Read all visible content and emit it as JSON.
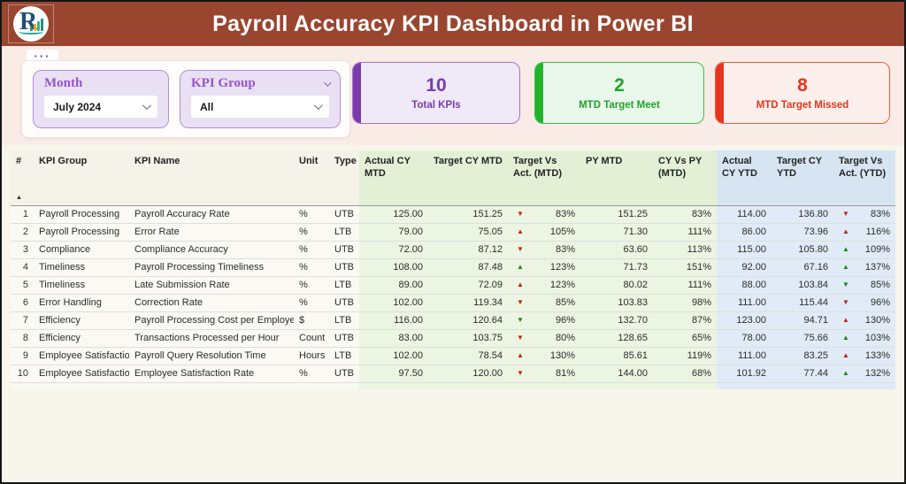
{
  "header": {
    "title": "Payroll Accuracy KPI Dashboard in Power BI",
    "logo_letter": "R",
    "header_bg": "#99452F"
  },
  "filters": {
    "more_options": "···",
    "month": {
      "label": "Month",
      "value": "July 2024"
    },
    "kpi_group": {
      "label": "KPI Group",
      "value": "All"
    }
  },
  "cards": [
    {
      "value": "10",
      "label": "Total KPIs",
      "bg": "#EFE9F8",
      "border": "#A66FD0",
      "accent": "#7B3AAC",
      "text": "#7B3AAC"
    },
    {
      "value": "2",
      "label": "MTD Target Meet",
      "bg": "#E9F8EB",
      "border": "#3DBD45",
      "accent": "#23B22B",
      "text": "#1FA32A"
    },
    {
      "value": "8",
      "label": "MTD Target Missed",
      "bg": "#FDF0EC",
      "border": "#E85C3A",
      "accent": "#E8341C",
      "text": "#E8341C"
    }
  ],
  "table": {
    "columns": [
      "#",
      "KPI Group",
      "KPI Name",
      "Unit",
      "Type",
      "Actual CY MTD",
      "Target CY MTD",
      "Target Vs Act. (MTD)",
      "PY MTD",
      "CY Vs PY (MTD)",
      "Actual CY YTD",
      "Target CY YTD",
      "Target Vs Act. (YTD)"
    ],
    "sort_indicator": "▲",
    "arrow_colors": {
      "red": "#C41E12",
      "green": "#138713"
    },
    "rows": [
      {
        "num": "1",
        "group": "Payroll Processing",
        "name": "Payroll Accuracy Rate",
        "unit": "%",
        "type": "UTB",
        "actual_cy_mtd": "125.00",
        "target_cy_mtd": "151.25",
        "tva_mtd": {
          "dir": "down",
          "color": "red",
          "value": "83%"
        },
        "py_mtd": "151.25",
        "cy_vs_py_mtd": "83%",
        "actual_cy_ytd": "114.00",
        "target_cy_ytd": "136.80",
        "tva_ytd": {
          "dir": "down",
          "color": "red",
          "value": "83%"
        }
      },
      {
        "num": "2",
        "group": "Payroll Processing",
        "name": "Error Rate",
        "unit": "%",
        "type": "LTB",
        "actual_cy_mtd": "79.00",
        "target_cy_mtd": "75.05",
        "tva_mtd": {
          "dir": "up",
          "color": "red",
          "value": "105%"
        },
        "py_mtd": "71.30",
        "cy_vs_py_mtd": "111%",
        "actual_cy_ytd": "86.00",
        "target_cy_ytd": "73.96",
        "tva_ytd": {
          "dir": "up",
          "color": "red",
          "value": "116%"
        }
      },
      {
        "num": "3",
        "group": "Compliance",
        "name": "Compliance Accuracy",
        "unit": "%",
        "type": "UTB",
        "actual_cy_mtd": "72.00",
        "target_cy_mtd": "87.12",
        "tva_mtd": {
          "dir": "down",
          "color": "red",
          "value": "83%"
        },
        "py_mtd": "63.60",
        "cy_vs_py_mtd": "113%",
        "actual_cy_ytd": "115.00",
        "target_cy_ytd": "105.80",
        "tva_ytd": {
          "dir": "up",
          "color": "green",
          "value": "109%"
        }
      },
      {
        "num": "4",
        "group": "Timeliness",
        "name": "Payroll Processing Timeliness",
        "unit": "%",
        "type": "UTB",
        "actual_cy_mtd": "108.00",
        "target_cy_mtd": "87.48",
        "tva_mtd": {
          "dir": "up",
          "color": "green",
          "value": "123%"
        },
        "py_mtd": "71.73",
        "cy_vs_py_mtd": "151%",
        "actual_cy_ytd": "92.00",
        "target_cy_ytd": "67.16",
        "tva_ytd": {
          "dir": "up",
          "color": "green",
          "value": "137%"
        }
      },
      {
        "num": "5",
        "group": "Timeliness",
        "name": "Late Submission Rate",
        "unit": "%",
        "type": "LTB",
        "actual_cy_mtd": "89.00",
        "target_cy_mtd": "72.09",
        "tva_mtd": {
          "dir": "up",
          "color": "red",
          "value": "123%"
        },
        "py_mtd": "80.02",
        "cy_vs_py_mtd": "111%",
        "actual_cy_ytd": "88.00",
        "target_cy_ytd": "103.84",
        "tva_ytd": {
          "dir": "down",
          "color": "green",
          "value": "85%"
        }
      },
      {
        "num": "6",
        "group": "Error Handling",
        "name": "Correction Rate",
        "unit": "%",
        "type": "UTB",
        "actual_cy_mtd": "102.00",
        "target_cy_mtd": "119.34",
        "tva_mtd": {
          "dir": "down",
          "color": "red",
          "value": "85%"
        },
        "py_mtd": "103.83",
        "cy_vs_py_mtd": "98%",
        "actual_cy_ytd": "111.00",
        "target_cy_ytd": "115.44",
        "tva_ytd": {
          "dir": "down",
          "color": "red",
          "value": "96%"
        }
      },
      {
        "num": "7",
        "group": "Efficiency",
        "name": "Payroll Processing Cost per Employee",
        "unit": "$",
        "type": "LTB",
        "actual_cy_mtd": "116.00",
        "target_cy_mtd": "120.64",
        "tva_mtd": {
          "dir": "down",
          "color": "green",
          "value": "96%"
        },
        "py_mtd": "132.70",
        "cy_vs_py_mtd": "87%",
        "actual_cy_ytd": "123.00",
        "target_cy_ytd": "94.71",
        "tva_ytd": {
          "dir": "up",
          "color": "red",
          "value": "130%"
        }
      },
      {
        "num": "8",
        "group": "Efficiency",
        "name": "Transactions Processed per Hour",
        "unit": "Count",
        "type": "UTB",
        "actual_cy_mtd": "83.00",
        "target_cy_mtd": "103.75",
        "tva_mtd": {
          "dir": "down",
          "color": "red",
          "value": "80%"
        },
        "py_mtd": "128.65",
        "cy_vs_py_mtd": "65%",
        "actual_cy_ytd": "78.00",
        "target_cy_ytd": "75.66",
        "tva_ytd": {
          "dir": "up",
          "color": "green",
          "value": "103%"
        }
      },
      {
        "num": "9",
        "group": "Employee Satisfaction",
        "name": "Payroll Query Resolution Time",
        "unit": "Hours",
        "type": "LTB",
        "actual_cy_mtd": "102.00",
        "target_cy_mtd": "78.54",
        "tva_mtd": {
          "dir": "up",
          "color": "red",
          "value": "130%"
        },
        "py_mtd": "85.61",
        "cy_vs_py_mtd": "119%",
        "actual_cy_ytd": "111.00",
        "target_cy_ytd": "83.25",
        "tva_ytd": {
          "dir": "up",
          "color": "red",
          "value": "133%"
        }
      },
      {
        "num": "10",
        "group": "Employee Satisfaction",
        "name": "Employee Satisfaction Rate",
        "unit": "%",
        "type": "UTB",
        "actual_cy_mtd": "97.50",
        "target_cy_mtd": "120.00",
        "tva_mtd": {
          "dir": "down",
          "color": "red",
          "value": "81%"
        },
        "py_mtd": "144.00",
        "cy_vs_py_mtd": "68%",
        "actual_cy_ytd": "101.92",
        "target_cy_ytd": "77.44",
        "tva_ytd": {
          "dir": "up",
          "color": "green",
          "value": "132%"
        }
      }
    ]
  }
}
